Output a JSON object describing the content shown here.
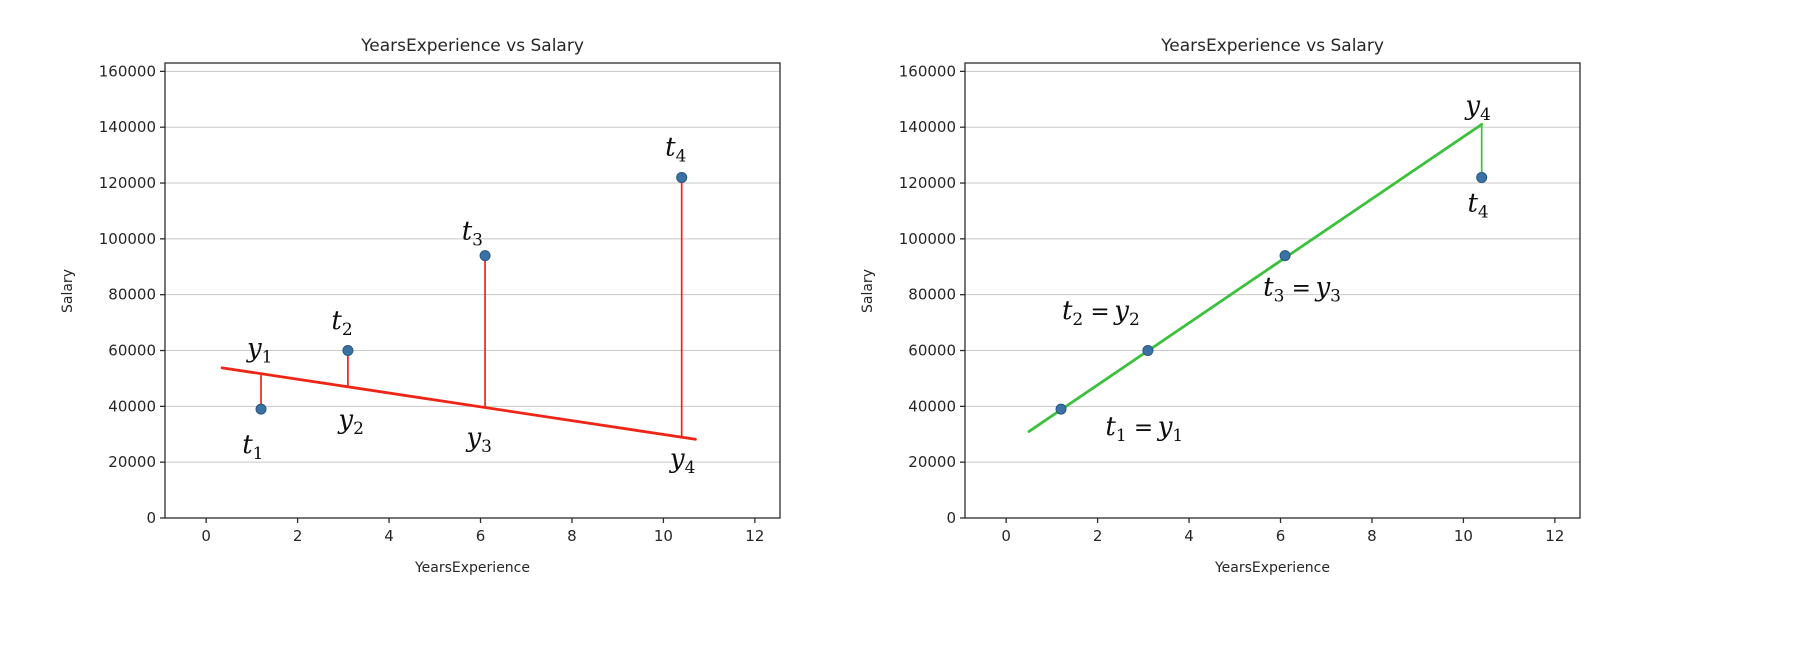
{
  "page": {
    "background": "#ffffff"
  },
  "chart_data": [
    {
      "type": "scatter",
      "title": "YearsExperience vs Salary",
      "xlabel": "YearsExperience",
      "ylabel": "Salary",
      "xlim": [
        -0.9,
        12.55
      ],
      "ylim": [
        0,
        163000
      ],
      "xticks": [
        0,
        2,
        4,
        6,
        8,
        10,
        12
      ],
      "yticks": [
        0,
        20000,
        40000,
        60000,
        80000,
        100000,
        120000,
        140000,
        160000
      ],
      "grid": "horizontal",
      "legend": "none",
      "point_color": "#3a72a6",
      "point_edge": "#27557f",
      "points": [
        [
          1.2,
          39000
        ],
        [
          3.1,
          60000
        ],
        [
          6.1,
          94000
        ],
        [
          10.4,
          122000
        ]
      ],
      "fit_line": {
        "color": "#ee2516",
        "x1": 0.35,
        "y1": 53800,
        "x2": 10.7,
        "y2": 28200
      },
      "residuals": "vertical segments from each point to fit line, same color as line",
      "annotations": [
        {
          "text": "y_1",
          "x": 1.2,
          "y": 61000
        },
        {
          "text": "t_1",
          "x": 1.05,
          "y": 26500
        },
        {
          "text": "t_2",
          "x": 3.0,
          "y": 71000
        },
        {
          "text": "y_2",
          "x": 3.2,
          "y": 35500
        },
        {
          "text": "t_3",
          "x": 5.85,
          "y": 103000
        },
        {
          "text": "y_3",
          "x": 6.0,
          "y": 29000
        },
        {
          "text": "t_4",
          "x": 10.3,
          "y": 133000
        },
        {
          "text": "y_4",
          "x": 10.45,
          "y": 21500
        }
      ]
    },
    {
      "type": "scatter",
      "title": "YearsExperience vs Salary",
      "xlabel": "YearsExperience",
      "ylabel": "Salary",
      "xlim": [
        -0.9,
        12.55
      ],
      "ylim": [
        0,
        163000
      ],
      "xticks": [
        0,
        2,
        4,
        6,
        8,
        10,
        12
      ],
      "yticks": [
        0,
        20000,
        40000,
        60000,
        80000,
        100000,
        120000,
        140000,
        160000
      ],
      "grid": "horizontal",
      "legend": "none",
      "point_color": "#3a72a6",
      "point_edge": "#27557f",
      "points": [
        [
          1.2,
          39000
        ],
        [
          3.1,
          60000
        ],
        [
          6.1,
          94000
        ],
        [
          10.4,
          122000
        ]
      ],
      "fit_line": {
        "color": "#3cc13c",
        "x1": 0.5,
        "y1": 31000,
        "x2": 10.4,
        "y2": 141000
      },
      "residuals": "vertical segments from each point to fit line, same color as line",
      "annotations": [
        {
          "text": "t_1 = y_1",
          "x": 3.05,
          "y": 33000
        },
        {
          "text": "t_2 = y_2",
          "x": 2.1,
          "y": 74500
        },
        {
          "text": "t_3 = y_3",
          "x": 6.5,
          "y": 83000
        },
        {
          "text": "y_4",
          "x": 10.35,
          "y": 148000
        },
        {
          "text": "t_4",
          "x": 10.35,
          "y": 113000
        }
      ]
    }
  ]
}
